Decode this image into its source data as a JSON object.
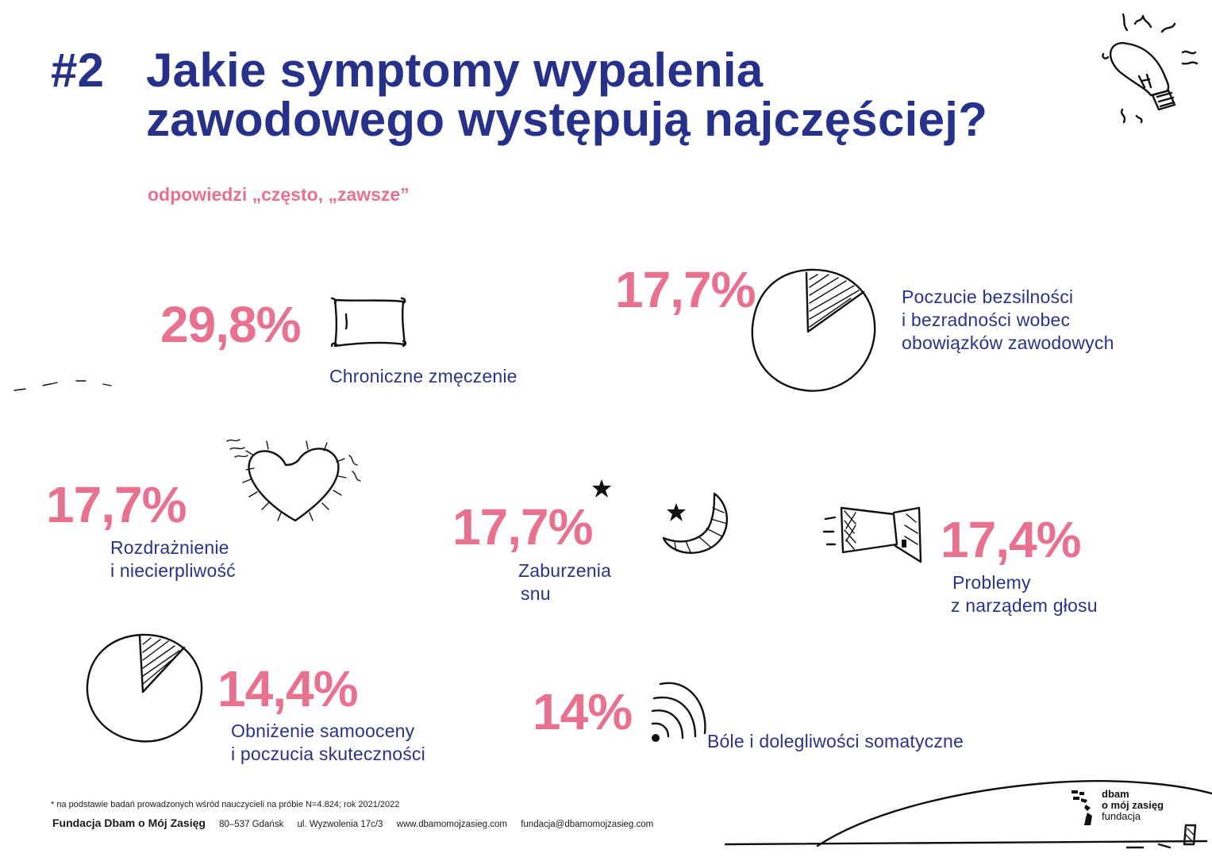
{
  "header": {
    "number": "#2",
    "title_line1": "Jakie symptomy wypalenia",
    "title_line2": "zawodowego występują najczęściej?",
    "subtitle": "odpowiedzi „często, „zawsze”"
  },
  "items": [
    {
      "value": "29,8%",
      "label_lines": [
        "Chroniczne zmęczenie"
      ],
      "icon": "pillow-icon"
    },
    {
      "value": "17,7%",
      "label_lines": [
        "Poczucie bezsilności",
        "i bezradności wobec",
        "obowiązków zawodowych"
      ],
      "icon": "pie-chart-icon"
    },
    {
      "value": "17,7%",
      "label_lines": [
        "Rozdrażnienie",
        "i niecierpliwość"
      ],
      "icon": "fuzzy-heart-icon"
    },
    {
      "value": "17,7%",
      "label_lines": [
        "Zaburzenia",
        "snu"
      ],
      "icon": "moon-stars-icon"
    },
    {
      "value": "17,4%",
      "label_lines": [
        "Problemy",
        "z narządem głosu"
      ],
      "icon": "megaphone-icon"
    },
    {
      "value": "14,4%",
      "label_lines": [
        "Obniżenie samooceny",
        "i poczucia skuteczności"
      ],
      "icon": "pie-chart-icon"
    },
    {
      "value": "14%",
      "label_lines": [
        "Bóle i dolegliwości somatyczne"
      ],
      "icon": "signal-waves-icon"
    }
  ],
  "footnote": "* na podstawie badań prowadzonych wśród nauczycieli na próbie N=4.824; rok 2021/2022",
  "footer": {
    "org": "Fundacja Dbam o Mój Zasięg",
    "postal": "80–537 Gdańsk",
    "street": "ul. Wyzwolenia 17c/3",
    "website": "www.dbamomojzasieg.com",
    "email": "fundacja@dbamomojzasieg.com"
  },
  "logo": {
    "line1": "dbam",
    "line2": "o mój zasięg",
    "line3": "fundacja"
  },
  "colors": {
    "title": "#26318a",
    "value": "#e8718f",
    "label": "#2a3387"
  }
}
